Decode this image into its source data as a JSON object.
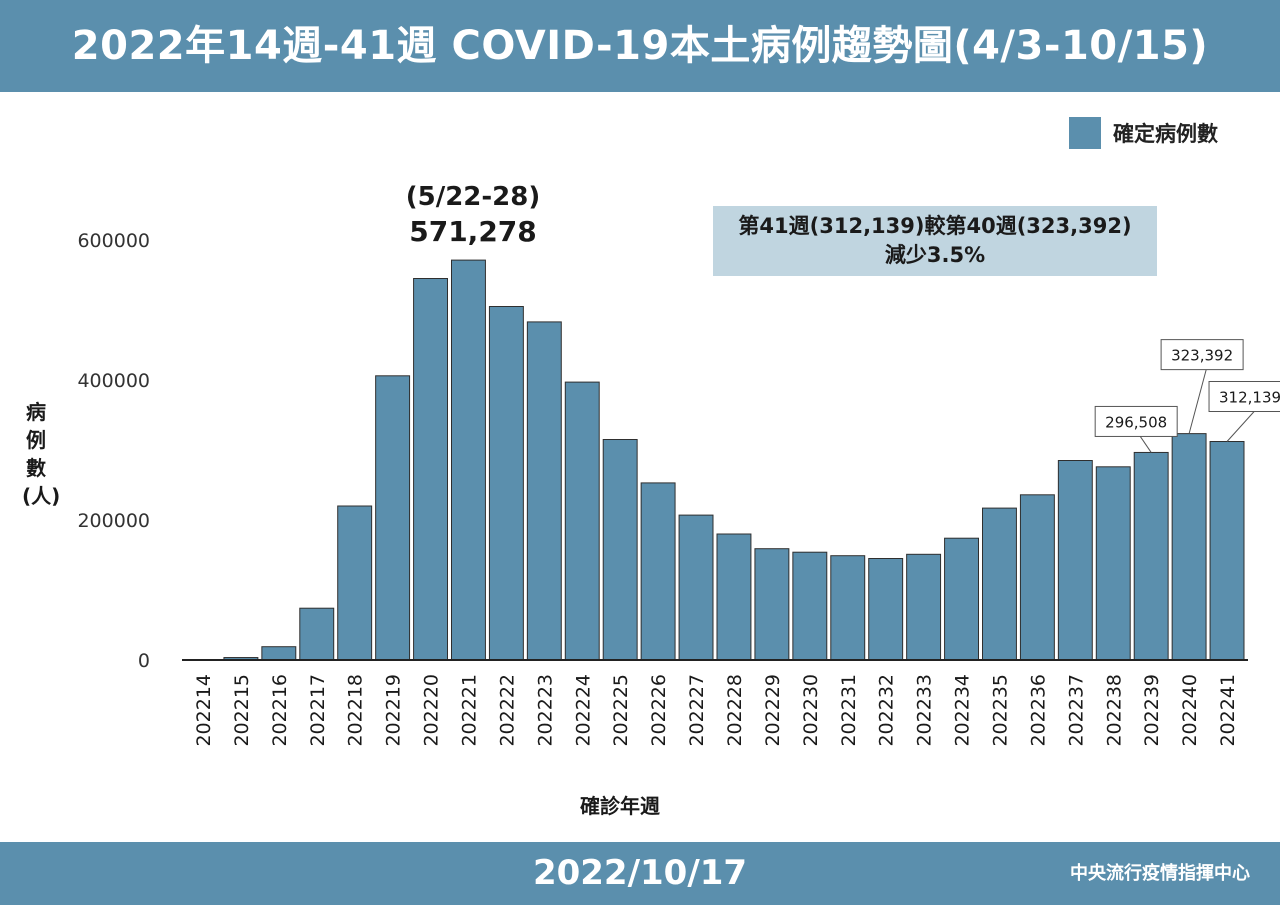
{
  "header": {
    "title": "2022年14週-41週 COVID-19本土病例趨勢圖(4/3-10/15)"
  },
  "footer": {
    "date": "2022/10/17",
    "org": "中央流行疫情指揮中心"
  },
  "legend": {
    "label": "確定病例數",
    "color": "#5b8fad"
  },
  "annotations": {
    "peak_range": "(5/22-28)",
    "peak_value": "571,278",
    "compare_line1": "第41週(312,139)較第40週(323,392)",
    "compare_line2": "減少3.5%",
    "callouts": [
      {
        "category": "202239",
        "text": "296,508"
      },
      {
        "category": "202240",
        "text": "323,392"
      },
      {
        "category": "202241",
        "text": "312,139"
      }
    ]
  },
  "chart_data": {
    "type": "bar",
    "title": "2022年14週-41週 COVID-19本土病例趨勢圖(4/3-10/15)",
    "xlabel": "確診年週",
    "ylabel": "病例數(人)",
    "ylim": [
      0,
      600000
    ],
    "yticks": [
      "0",
      "200000",
      "400000",
      "600000"
    ],
    "grid": false,
    "legend_position": "top-right",
    "bar_color": "#5b8fad",
    "categories": [
      "202214",
      "202215",
      "202216",
      "202217",
      "202218",
      "202219",
      "202220",
      "202221",
      "202222",
      "202223",
      "202224",
      "202225",
      "202226",
      "202227",
      "202228",
      "202229",
      "202230",
      "202231",
      "202232",
      "202233",
      "202234",
      "202235",
      "202236",
      "202237",
      "202238",
      "202239",
      "202240",
      "202241"
    ],
    "series": [
      {
        "name": "確定病例數",
        "values": [
          300,
          3500,
          19000,
          74000,
          220000,
          406000,
          545000,
          571278,
          505000,
          483000,
          397000,
          315000,
          253000,
          207000,
          180000,
          159000,
          154000,
          149000,
          145000,
          151000,
          174000,
          217000,
          236000,
          285000,
          276000,
          296508,
          323392,
          312139
        ]
      }
    ]
  }
}
